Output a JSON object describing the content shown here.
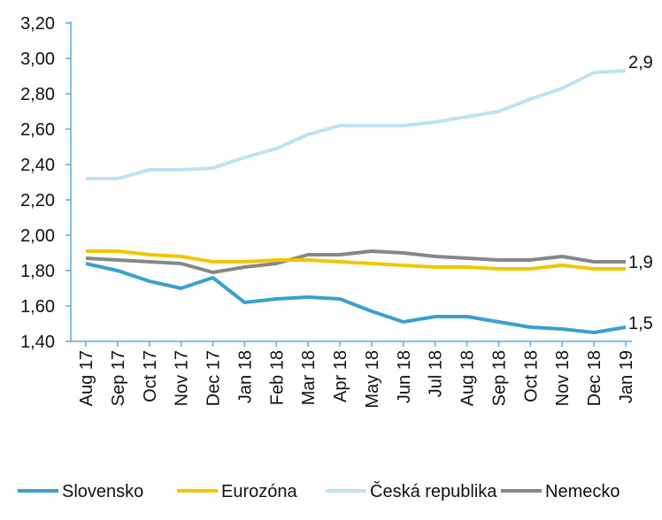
{
  "chart_data": {
    "type": "line",
    "categories": [
      "Aug 17",
      "Sep 17",
      "Oct 17",
      "Nov 17",
      "Dec 17",
      "Jan 18",
      "Feb 18",
      "Mar 18",
      "Apr 18",
      "May 18",
      "Jun 18",
      "Jul 18",
      "Aug 18",
      "Sep 18",
      "Oct 18",
      "Nov 18",
      "Dec 18",
      "Jan 19"
    ],
    "series": [
      {
        "name": "Slovensko",
        "color": "#3a9fd0",
        "values": [
          1.84,
          1.8,
          1.74,
          1.7,
          1.76,
          1.62,
          1.64,
          1.65,
          1.64,
          1.57,
          1.51,
          1.54,
          1.54,
          1.51,
          1.48,
          1.47,
          1.45,
          1.48
        ],
        "end_label": "1,5"
      },
      {
        "name": "Eurozóna",
        "color": "#f2c500",
        "values": [
          1.91,
          1.91,
          1.89,
          1.88,
          1.85,
          1.85,
          1.86,
          1.86,
          1.85,
          1.84,
          1.83,
          1.82,
          1.82,
          1.81,
          1.81,
          1.83,
          1.81,
          1.81
        ],
        "end_label": ""
      },
      {
        "name": "Česká republika",
        "color": "#bfe2f4",
        "values": [
          2.32,
          2.32,
          2.37,
          2.37,
          2.38,
          2.44,
          2.49,
          2.57,
          2.62,
          2.62,
          2.62,
          2.64,
          2.67,
          2.7,
          2.77,
          2.83,
          2.92,
          2.93
        ],
        "end_label": "2,9"
      },
      {
        "name": "Nemecko",
        "color": "#878787",
        "values": [
          1.87,
          1.86,
          1.85,
          1.84,
          1.79,
          1.82,
          1.84,
          1.89,
          1.89,
          1.91,
          1.9,
          1.88,
          1.87,
          1.86,
          1.86,
          1.88,
          1.85,
          1.85
        ],
        "end_label": "1,9"
      }
    ],
    "y_ticks": [
      "1,40",
      "1,60",
      "1,80",
      "2,00",
      "2,20",
      "2,40",
      "2,60",
      "2,80",
      "3,00",
      "3,20"
    ],
    "ylim": [
      1.4,
      3.2
    ],
    "grid": false,
    "legend_position": "bottom",
    "axis_color": "#5fa8d8",
    "title": "",
    "xlabel": "",
    "ylabel": ""
  }
}
